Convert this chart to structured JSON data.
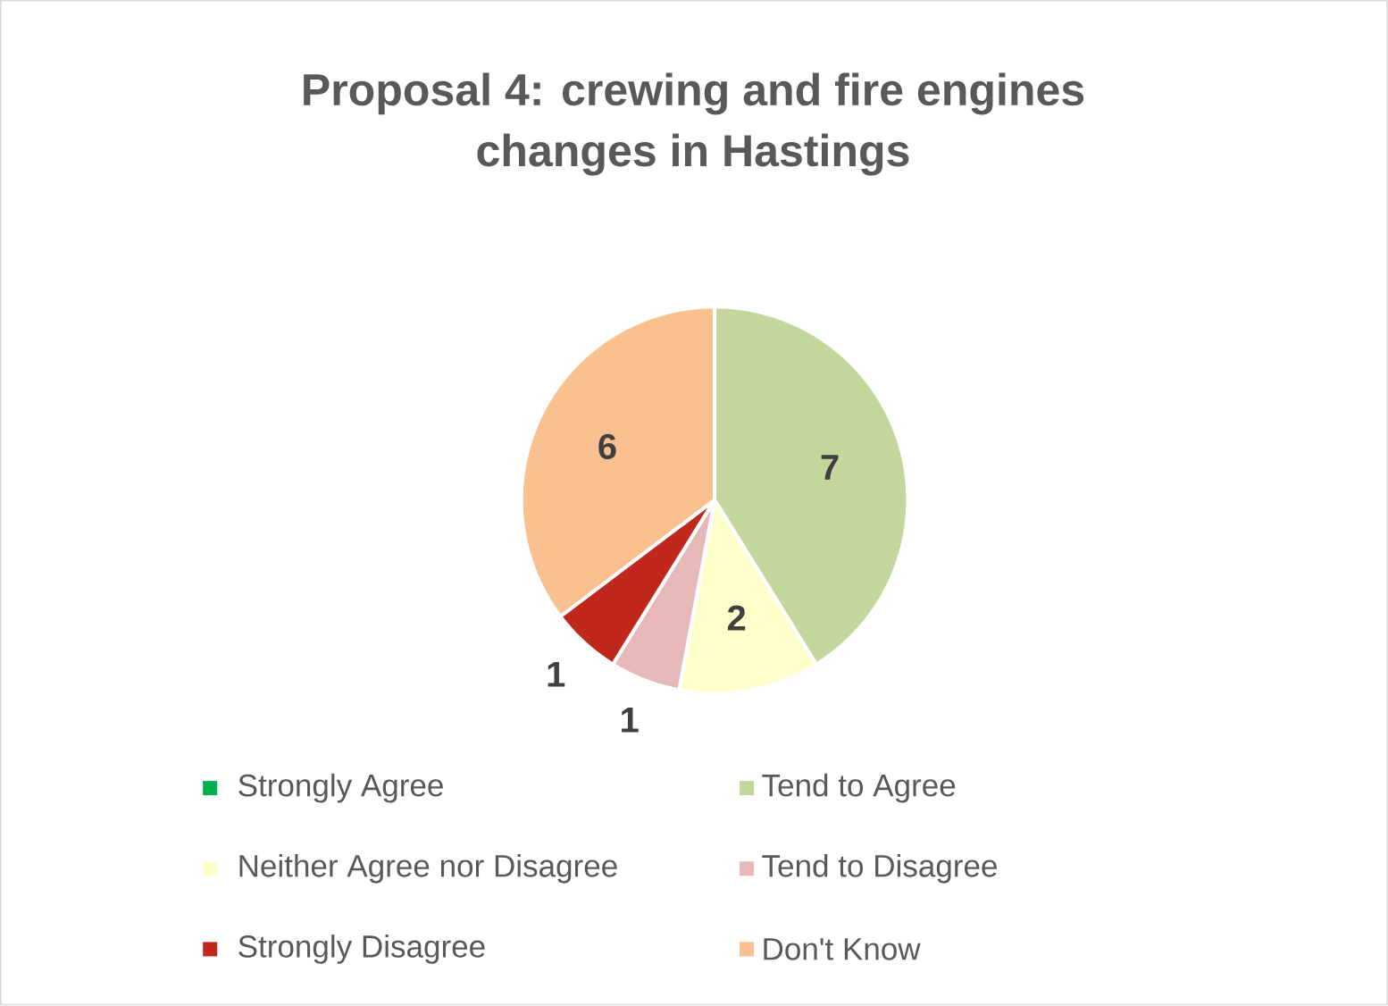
{
  "chart_data": {
    "type": "pie",
    "title": "Proposal 4: crewing and fire engines changes in Hastings",
    "categories": [
      "Strongly Agree",
      "Tend to Agree",
      "Neither Agree nor Disagree",
      "Tend to Disagree",
      "Strongly Disagree",
      "Don't Know"
    ],
    "values": [
      0,
      7,
      2,
      1,
      1,
      6
    ],
    "colors": [
      "#00b050",
      "#c3d69b",
      "#ffffcc",
      "#e6b9b8",
      "#c0281c",
      "#fac090"
    ],
    "value_labels": [
      null,
      "7",
      "2",
      "1",
      "1",
      "6"
    ],
    "legend": "bottom"
  }
}
